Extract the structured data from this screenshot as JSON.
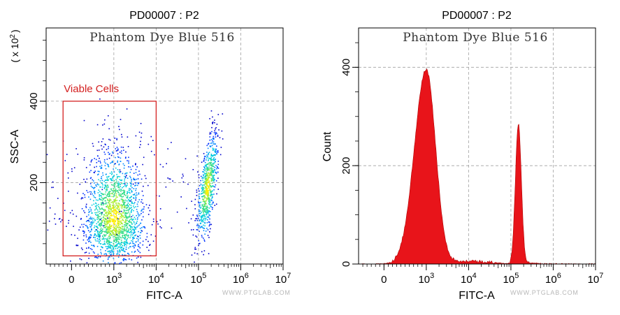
{
  "chart_data": [
    {
      "type": "scatter",
      "title": "PD00007 : P2",
      "annotation": "Phantom Dye Blue 516",
      "xlabel": "FITC-A",
      "ylabel": "SSC-A",
      "ylabel_multiplier": "( x 10",
      "ylabel_multiplier_exp": "2",
      "ylabel_multiplier_close": ")",
      "x_scale": "log",
      "xlim": [
        -600,
        10000000
      ],
      "ylim": [
        0,
        580
      ],
      "x_ticks": [
        {
          "label": "0",
          "value": 0
        },
        {
          "label": "10",
          "sup": "3",
          "value": 1000
        },
        {
          "label": "10",
          "sup": "4",
          "value": 10000
        },
        {
          "label": "10",
          "sup": "5",
          "value": 100000
        },
        {
          "label": "10",
          "sup": "6",
          "value": 1000000
        },
        {
          "label": "10",
          "sup": "7",
          "value": 10000000
        }
      ],
      "y_ticks": [
        {
          "label": "200",
          "value": 200
        },
        {
          "label": "400",
          "value": 400
        }
      ],
      "grid": true,
      "gate": {
        "label": "Viable Cells",
        "x_range": [
          -200,
          10000
        ],
        "y_range": [
          20,
          400
        ],
        "color": "#d42020"
      },
      "clusters": [
        {
          "x_center": 1000,
          "y_center": 110,
          "x_spread": 0.35,
          "y_spread": 55,
          "count": 1800
        },
        {
          "x_center": 160000,
          "y_center": 190,
          "x_spread": 0.12,
          "y_spread": 50,
          "count": 700
        }
      ]
    },
    {
      "type": "area",
      "title": "PD00007 : P2",
      "annotation": "Phantom Dye Blue 516",
      "xlabel": "FITC-A",
      "ylabel": "Count",
      "x_scale": "log",
      "xlim": [
        -600,
        10000000
      ],
      "ylim": [
        0,
        480
      ],
      "x_ticks": [
        {
          "label": "0",
          "value": 0
        },
        {
          "label": "10",
          "sup": "3",
          "value": 1000
        },
        {
          "label": "10",
          "sup": "4",
          "value": 10000
        },
        {
          "label": "10",
          "sup": "5",
          "value": 100000
        },
        {
          "label": "10",
          "sup": "6",
          "value": 1000000
        },
        {
          "label": "10",
          "sup": "7",
          "value": 10000000
        }
      ],
      "y_ticks": [
        {
          "label": "0",
          "value": 0
        },
        {
          "label": "200",
          "value": 200
        },
        {
          "label": "400",
          "value": 400
        }
      ],
      "grid": true,
      "fill_color": "#e8141a",
      "peaks": [
        {
          "x_center": 1000,
          "count": 395
        },
        {
          "x_center": 150000,
          "count": 283
        }
      ]
    }
  ],
  "watermark": "WWW.PTGLAB.COM"
}
